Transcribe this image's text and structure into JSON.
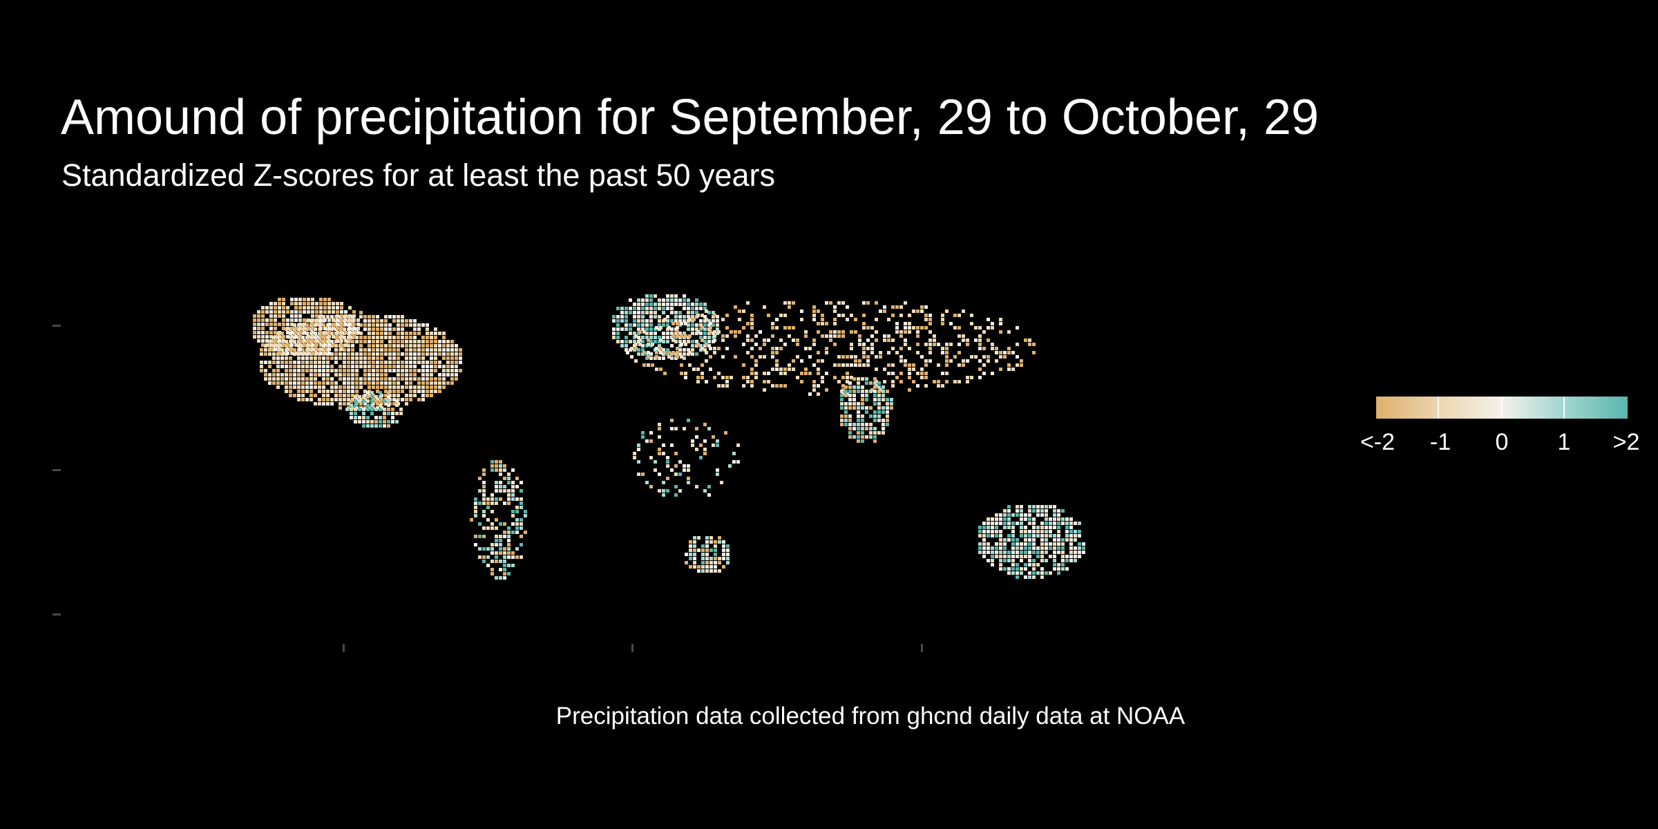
{
  "title": "Amound of precipitation for September, 29 to October, 29",
  "subtitle": "Standardized Z-scores for at least the past 50 years",
  "caption": "Precipitation data collected from ghcnd daily data at NOAA",
  "legend": {
    "labels": [
      "<-2",
      "-1",
      "0",
      "1",
      ">2"
    ],
    "colors": {
      "low": "#dfb06e",
      "mid_low": "#eedcbb",
      "zero": "#f4f1ea",
      "mid_high": "#a8d9d2",
      "high": "#5ab6ad"
    }
  },
  "map": {
    "background": "#000000",
    "regions": [
      {
        "name": "North America",
        "tendency": "dry"
      },
      {
        "name": "Central America",
        "tendency": "mixed"
      },
      {
        "name": "South America",
        "tendency": "mixed"
      },
      {
        "name": "Europe",
        "tendency": "wet"
      },
      {
        "name": "Asia",
        "tendency": "dry"
      },
      {
        "name": "India",
        "tendency": "mixed"
      },
      {
        "name": "Africa",
        "tendency": "mixed"
      },
      {
        "name": "Southern Africa",
        "tendency": "mixed"
      },
      {
        "name": "Australia",
        "tendency": "wet"
      }
    ]
  }
}
